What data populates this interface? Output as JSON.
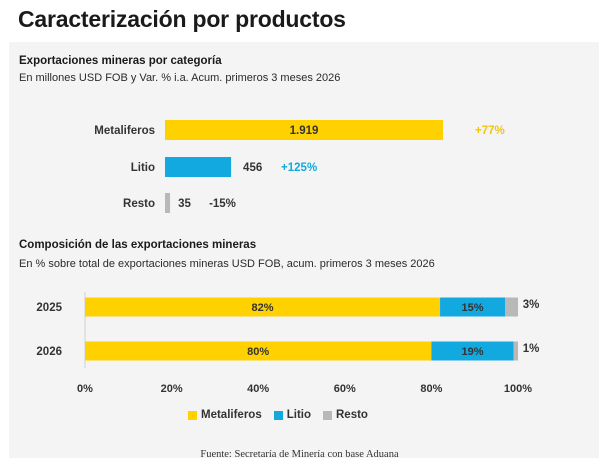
{
  "page": {
    "title": "Caracterización por productos"
  },
  "colors": {
    "metaliferos": "#FFD100",
    "litio": "#12A9E0",
    "resto": "#B8B8B8",
    "metaliferos_var": "#F5C400",
    "litio_var": "#12A9E0",
    "neutral_var": "#333333"
  },
  "chart1": {
    "title": "Exportaciones mineras por categoría",
    "subtitle": "En millones USD FOB y Var. % i.a. Acum. primeros 3 meses 2026"
  },
  "chart2": {
    "title": "Composición de las exportaciones mineras",
    "subtitle": "En % sobre total de exportaciones mineras USD FOB, acum. primeros 3 meses 2026"
  },
  "legend": [
    "Metaliferos",
    "Litio",
    "Resto"
  ],
  "source": "Fuente: Secretaría de Minería con base Aduana",
  "chart_data": [
    {
      "type": "bar",
      "orientation": "horizontal",
      "title": "Exportaciones mineras por categoría",
      "categories": [
        "Metaliferos",
        "Litio",
        "Resto"
      ],
      "values": [
        1919,
        456,
        35
      ],
      "value_labels": [
        "1.919",
        "456",
        "35"
      ],
      "variation_labels": [
        "+77%",
        "+125%",
        "-15%"
      ]
    },
    {
      "type": "bar",
      "orientation": "horizontal",
      "stacked": true,
      "title": "Composición de las exportaciones mineras",
      "categories": [
        "2025",
        "2026"
      ],
      "series": [
        {
          "name": "Metaliferos",
          "values": [
            82,
            80
          ],
          "labels": [
            "82%",
            "80%"
          ]
        },
        {
          "name": "Litio",
          "values": [
            15,
            19
          ],
          "labels": [
            "15%",
            "19%"
          ]
        },
        {
          "name": "Resto",
          "values": [
            3,
            1
          ],
          "labels": [
            "3%",
            "1%"
          ]
        }
      ],
      "xlim": [
        0,
        100
      ],
      "xticks": [
        "0%",
        "20%",
        "40%",
        "60%",
        "80%",
        "100%"
      ]
    }
  ]
}
